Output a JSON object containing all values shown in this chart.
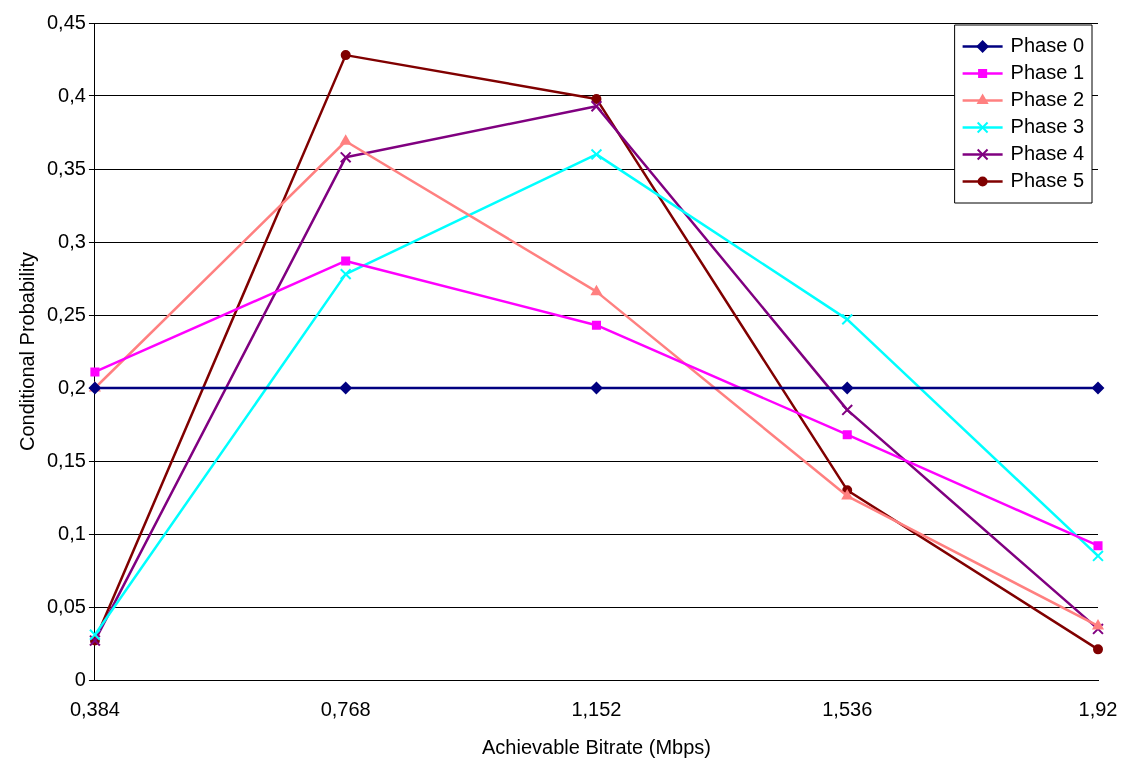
{
  "chart_data": {
    "type": "line",
    "xlabel": "Achievable Bitrate (Mbps)",
    "ylabel": "Conditional Probability",
    "categories": [
      "0,384",
      "0,768",
      "1,152",
      "1,536",
      "1,92"
    ],
    "ylim": [
      0,
      0.45
    ],
    "yticks": [
      {
        "value": 0,
        "label": "0"
      },
      {
        "value": 0.05,
        "label": "0,05"
      },
      {
        "value": 0.1,
        "label": "0,1"
      },
      {
        "value": 0.15,
        "label": "0,15"
      },
      {
        "value": 0.2,
        "label": "0,2"
      },
      {
        "value": 0.25,
        "label": "0,25"
      },
      {
        "value": 0.3,
        "label": "0,3"
      },
      {
        "value": 0.35,
        "label": "0,35"
      },
      {
        "value": 0.4,
        "label": "0,4"
      },
      {
        "value": 0.45,
        "label": "0,45"
      }
    ],
    "grid": "y",
    "legend": "top right",
    "line_style": "solid",
    "series": [
      {
        "name": "Phase 0",
        "color": "#000080",
        "marker": "diamond",
        "values": [
          0.2,
          0.2,
          0.2,
          0.2,
          0.2
        ]
      },
      {
        "name": "Phase 1",
        "color": "#ff00ff",
        "marker": "square",
        "values": [
          0.211,
          0.287,
          0.243,
          0.168,
          0.092
        ]
      },
      {
        "name": "Phase 2",
        "color": "#ff8080",
        "marker": "triangle",
        "values": [
          0.2,
          0.369,
          0.266,
          0.126,
          0.037
        ]
      },
      {
        "name": "Phase 3",
        "color": "#00ffff",
        "marker": "cross",
        "values": [
          0.031,
          0.278,
          0.36,
          0.247,
          0.085
        ]
      },
      {
        "name": "Phase 4",
        "color": "#800080",
        "marker": "cross",
        "values": [
          0.027,
          0.358,
          0.393,
          0.185,
          0.035
        ]
      },
      {
        "name": "Phase 5",
        "color": "#800000",
        "marker": "circle",
        "values": [
          0.027,
          0.428,
          0.398,
          0.13,
          0.021
        ]
      }
    ]
  }
}
